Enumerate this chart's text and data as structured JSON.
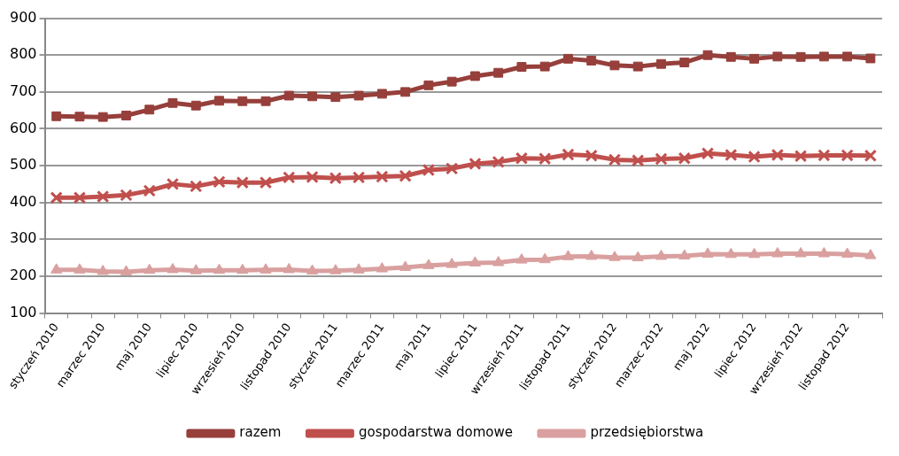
{
  "chart_data": {
    "type": "line",
    "categories": [
      "styczeń 2010",
      null,
      "marzec 2010",
      null,
      "maj 2010",
      null,
      "lipiec 2010",
      null,
      "wrzesień 2010",
      null,
      "listopad 2010",
      null,
      "styczeń 2011",
      null,
      "marzec 2011",
      null,
      "maj 2011",
      null,
      "lipiec 2011",
      null,
      "wrzesień 2011",
      null,
      "listopad 2011",
      null,
      "styczeń 2012",
      null,
      "marzec 2012",
      null,
      "maj 2012",
      null,
      "lipiec 2012",
      null,
      "wrzesień 2012",
      null,
      "listopad 2012",
      null
    ],
    "series": [
      {
        "name": "razem",
        "color": "#963f3b",
        "marker": "square",
        "values": [
          634,
          633,
          632,
          636,
          652,
          670,
          663,
          676,
          675,
          675,
          690,
          688,
          686,
          690,
          695,
          700,
          718,
          728,
          743,
          752,
          768,
          769,
          790,
          785,
          772,
          769,
          776,
          780,
          800,
          795,
          790,
          796,
          795,
          796,
          796,
          791
        ]
      },
      {
        "name": "gospodarstwa domowe",
        "color": "#c0504d",
        "marker": "cross",
        "values": [
          413,
          413,
          416,
          420,
          432,
          450,
          444,
          456,
          454,
          454,
          468,
          469,
          466,
          468,
          470,
          472,
          488,
          492,
          505,
          510,
          520,
          519,
          530,
          527,
          516,
          514,
          518,
          520,
          533,
          529,
          524,
          529,
          526,
          528,
          528,
          527
        ]
      },
      {
        "name": "przedsiębiorstwa",
        "color": "#d9a09f",
        "marker": "triangle",
        "values": [
          217,
          217,
          213,
          212,
          216,
          218,
          215,
          216,
          216,
          217,
          218,
          214,
          215,
          217,
          220,
          224,
          229,
          232,
          236,
          237,
          244,
          245,
          253,
          254,
          251,
          250,
          254,
          255,
          260,
          259,
          259,
          261,
          261,
          261,
          260,
          256
        ]
      }
    ],
    "ylim": [
      100,
      900
    ],
    "yticks": [
      100,
      200,
      300,
      400,
      500,
      600,
      700,
      800,
      900
    ],
    "grid": "y",
    "legend": "bottom",
    "line_style": "solid"
  }
}
